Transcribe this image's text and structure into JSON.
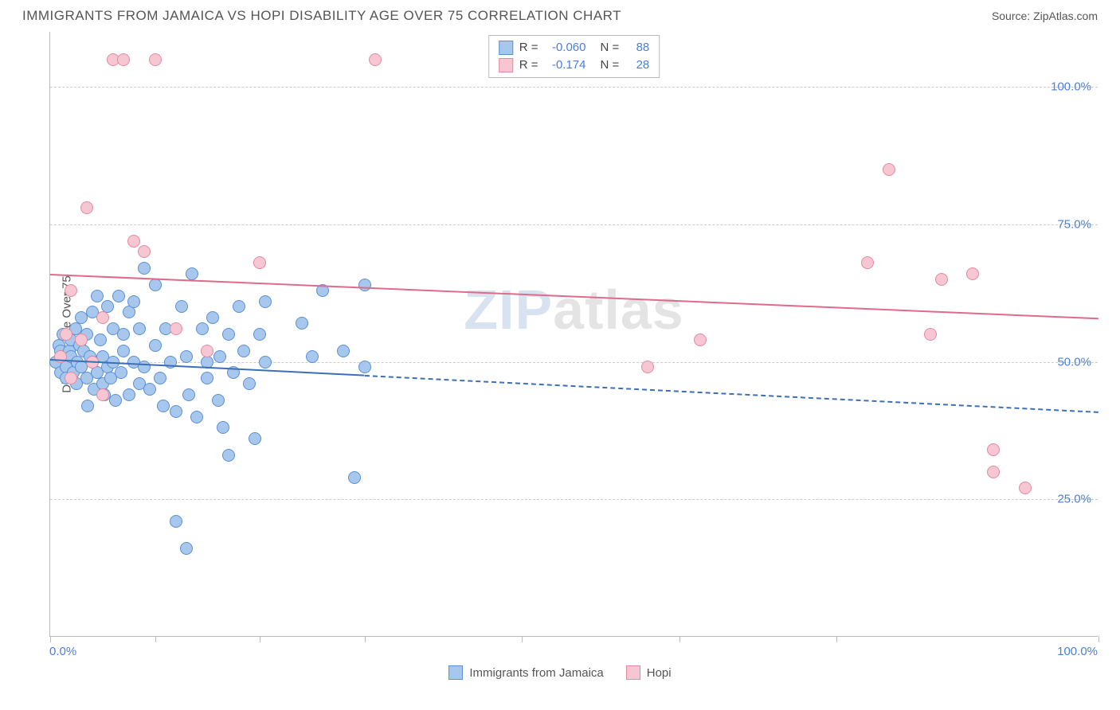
{
  "title": "IMMIGRANTS FROM JAMAICA VS HOPI DISABILITY AGE OVER 75 CORRELATION CHART",
  "source": "Source: ZipAtlas.com",
  "yAxisLabel": "Disability Age Over 75",
  "watermark": {
    "left": "ZIP",
    "right": "atlas"
  },
  "chart": {
    "type": "scatter",
    "background": "#ffffff",
    "grid_color": "#cccccc",
    "axis_color": "#bbbbbb",
    "xlim": [
      0,
      100
    ],
    "ylim": [
      0,
      110
    ],
    "xticks": [
      0,
      10,
      20,
      30,
      45,
      60,
      75,
      100
    ],
    "xtick_labels": {
      "0": "0.0%",
      "100": "100.0%"
    },
    "yticks": [
      25,
      50,
      75,
      100
    ],
    "ytick_labels": [
      "25.0%",
      "50.0%",
      "75.0%",
      "100.0%"
    ],
    "tick_label_color": "#4a7fd4",
    "point_radius": 8,
    "series": [
      {
        "name": "Immigrants from Jamaica",
        "fill": "#a7c7ed",
        "stroke": "#5b8fd6",
        "R": "-0.060",
        "N": "88",
        "trend": {
          "y_at_x0": 50.5,
          "y_at_x100": 41.0,
          "solid_until_x": 30,
          "color": "#3d6fb5"
        },
        "points": [
          [
            0.5,
            50
          ],
          [
            0.8,
            53
          ],
          [
            1,
            48
          ],
          [
            1,
            52
          ],
          [
            1.2,
            55
          ],
          [
            1.5,
            49
          ],
          [
            1.5,
            47
          ],
          [
            1.8,
            52
          ],
          [
            2,
            51
          ],
          [
            2,
            54
          ],
          [
            2.2,
            48
          ],
          [
            2.4,
            56
          ],
          [
            2.5,
            46
          ],
          [
            2.6,
            50
          ],
          [
            2.8,
            53
          ],
          [
            3,
            49
          ],
          [
            3,
            58
          ],
          [
            3.2,
            52
          ],
          [
            3.5,
            47
          ],
          [
            3.5,
            55
          ],
          [
            3.6,
            42
          ],
          [
            3.8,
            51
          ],
          [
            4,
            50
          ],
          [
            4,
            59
          ],
          [
            4.2,
            45
          ],
          [
            4.5,
            48
          ],
          [
            4.5,
            62
          ],
          [
            4.8,
            54
          ],
          [
            5,
            46
          ],
          [
            5,
            51
          ],
          [
            5.2,
            44
          ],
          [
            5.5,
            60
          ],
          [
            5.5,
            49
          ],
          [
            5.8,
            47
          ],
          [
            6,
            56
          ],
          [
            6,
            50
          ],
          [
            6.2,
            43
          ],
          [
            6.5,
            62
          ],
          [
            6.8,
            48
          ],
          [
            7,
            52
          ],
          [
            7,
            55
          ],
          [
            7.5,
            44
          ],
          [
            7.5,
            59
          ],
          [
            8,
            50
          ],
          [
            8,
            61
          ],
          [
            8.5,
            46
          ],
          [
            8.5,
            56
          ],
          [
            9,
            49
          ],
          [
            9,
            67
          ],
          [
            9.5,
            45
          ],
          [
            10,
            53
          ],
          [
            10,
            64
          ],
          [
            10.5,
            47
          ],
          [
            10.8,
            42
          ],
          [
            11,
            56
          ],
          [
            11.5,
            50
          ],
          [
            12,
            41
          ],
          [
            12.5,
            60
          ],
          [
            13,
            51
          ],
          [
            13.2,
            44
          ],
          [
            13.5,
            66
          ],
          [
            14,
            40
          ],
          [
            14.5,
            56
          ],
          [
            15,
            50
          ],
          [
            15,
            47
          ],
          [
            15.5,
            58
          ],
          [
            16,
            43
          ],
          [
            16.2,
            51
          ],
          [
            16.5,
            38
          ],
          [
            17,
            55
          ],
          [
            17.5,
            48
          ],
          [
            18,
            60
          ],
          [
            18.5,
            52
          ],
          [
            19,
            46
          ],
          [
            19.5,
            36
          ],
          [
            20,
            55
          ],
          [
            20.5,
            50
          ],
          [
            20.5,
            61
          ],
          [
            24,
            57
          ],
          [
            25,
            51
          ],
          [
            26,
            63
          ],
          [
            28,
            52
          ],
          [
            30,
            64
          ],
          [
            30,
            49
          ],
          [
            12,
            21
          ],
          [
            13,
            16
          ],
          [
            17,
            33
          ],
          [
            29,
            29
          ]
        ]
      },
      {
        "name": "Hopi",
        "fill": "#f6c6d3",
        "stroke": "#e28aa2",
        "R": "-0.174",
        "N": "28",
        "trend": {
          "y_at_x0": 66.0,
          "y_at_x100": 58.0,
          "solid_until_x": 100,
          "color": "#e06a8a"
        },
        "points": [
          [
            1,
            51
          ],
          [
            1.5,
            55
          ],
          [
            2,
            63
          ],
          [
            2,
            47
          ],
          [
            3,
            54
          ],
          [
            3.5,
            78
          ],
          [
            4,
            50
          ],
          [
            5,
            44
          ],
          [
            5,
            58
          ],
          [
            6,
            105
          ],
          [
            7,
            105
          ],
          [
            8,
            72
          ],
          [
            9,
            70
          ],
          [
            10,
            105
          ],
          [
            12,
            56
          ],
          [
            15,
            52
          ],
          [
            20,
            68
          ],
          [
            31,
            105
          ],
          [
            57,
            49
          ],
          [
            62,
            54
          ],
          [
            78,
            68
          ],
          [
            80,
            85
          ],
          [
            84,
            55
          ],
          [
            85,
            65
          ],
          [
            88,
            66
          ],
          [
            90,
            30
          ],
          [
            90,
            34
          ],
          [
            93,
            27
          ]
        ]
      }
    ]
  },
  "legend": {
    "items": [
      {
        "label": "Immigrants from Jamaica",
        "fill": "#a7c7ed",
        "stroke": "#5b8fd6"
      },
      {
        "label": "Hopi",
        "fill": "#f6c6d3",
        "stroke": "#e28aa2"
      }
    ]
  }
}
